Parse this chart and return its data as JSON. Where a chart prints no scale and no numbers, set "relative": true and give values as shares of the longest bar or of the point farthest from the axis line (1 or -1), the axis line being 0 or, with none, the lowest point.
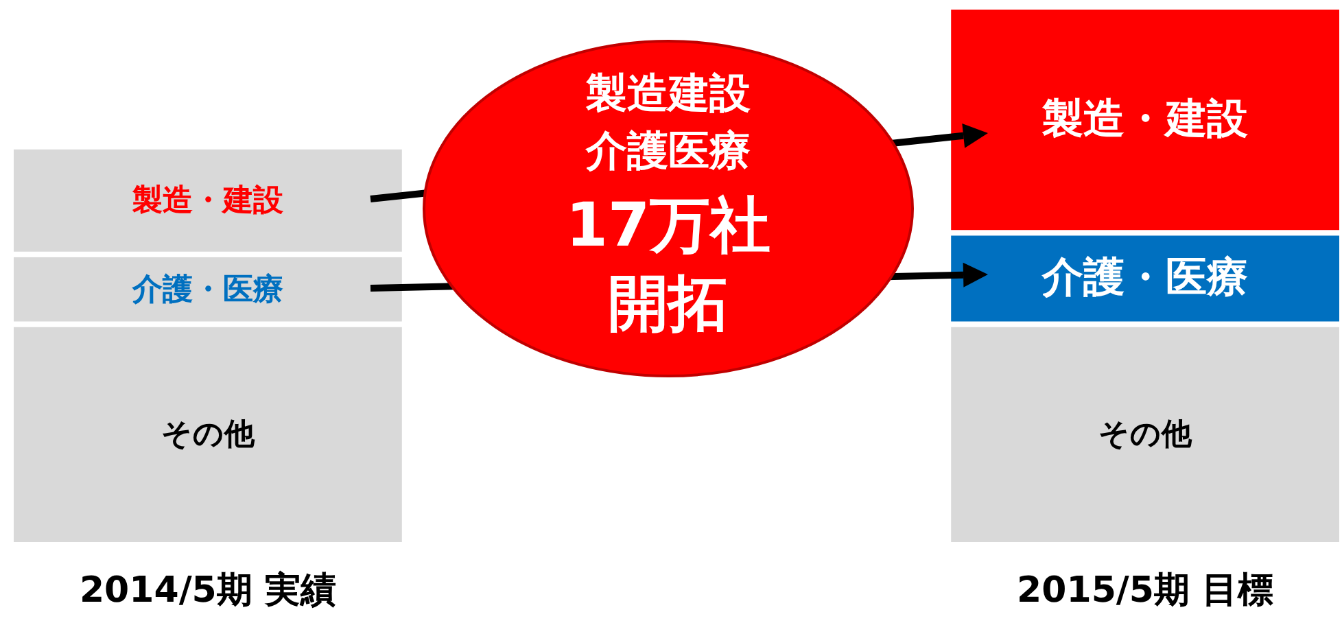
{
  "chart_data": {
    "type": "bar",
    "stacked": true,
    "relative": true,
    "categories": [
      "2014/5期  実績",
      "2015/5期  目標"
    ],
    "series": [
      {
        "name": "その他",
        "color": "#d9d9d9",
        "colors": [
          "#d9d9d9",
          "#d9d9d9"
        ],
        "values": [
          0.41,
          0.41
        ]
      },
      {
        "name": "介護・医療",
        "color": "#0070c0",
        "colors": [
          "#d9d9d9",
          "#0070c0"
        ],
        "values": [
          0.13,
          0.17
        ]
      },
      {
        "name": "製造・建設",
        "color": "#ff0000",
        "colors": [
          "#d9d9d9",
          "#ff0000"
        ],
        "values": [
          0.2,
          0.42
        ]
      }
    ],
    "annotations": [
      "製造建設",
      "介護医療",
      "17万社",
      "開拓"
    ]
  }
}
